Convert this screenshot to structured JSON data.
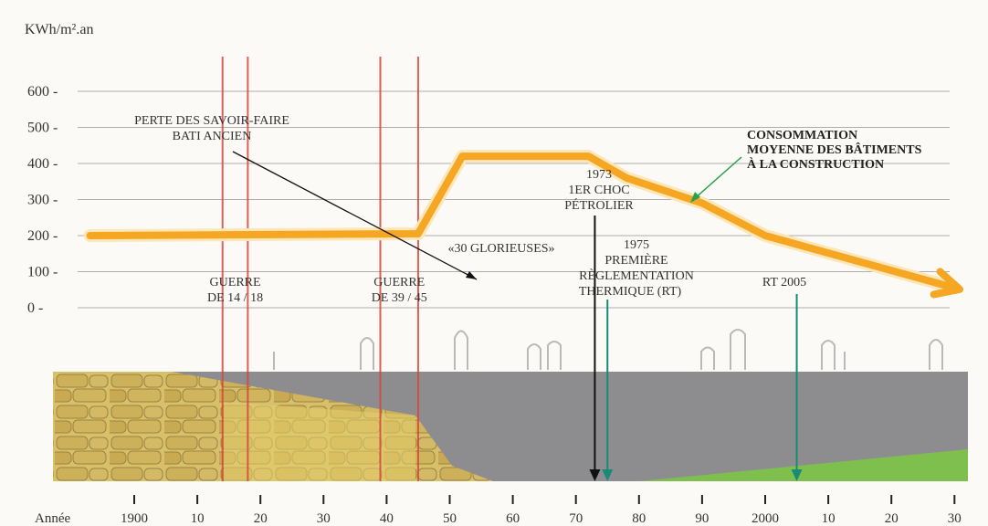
{
  "chart_data": {
    "type": "line",
    "ylabel": "KWh/m².an",
    "xlabel": "Année",
    "yticks": [
      "600",
      "500",
      "400",
      "300",
      "200",
      "100",
      "0"
    ],
    "ytick_values": [
      600,
      500,
      400,
      300,
      200,
      100,
      0
    ],
    "xticks": [
      "1900",
      "10",
      "20",
      "30",
      "40",
      "50",
      "60",
      "70",
      "80",
      "90",
      "2000",
      "10",
      "20",
      "30"
    ],
    "xtick_years": [
      1900,
      1910,
      1920,
      1930,
      1940,
      1950,
      1960,
      1970,
      1980,
      1990,
      2000,
      2010,
      2020,
      2030
    ],
    "xlim": [
      1900,
      2030
    ],
    "ylim": [
      0,
      600
    ],
    "series": [
      {
        "name": "CONSOMMATION MOYENNE DES BÂTIMENTS À LA CONSTRUCTION",
        "x": [
          1893,
          1945,
          1952,
          1972,
          1978,
          1990,
          2000,
          2030
        ],
        "y": [
          200,
          205,
          420,
          420,
          360,
          290,
          200,
          55
        ]
      }
    ],
    "war_periods": [
      {
        "label": "GUERRE DE 14 / 18",
        "start": 1914,
        "end": 1918
      },
      {
        "label": "GUERRE DE 39 / 45",
        "start": 1939,
        "end": 1945
      }
    ],
    "annotations": [
      {
        "text": "PERTE DES SAVOIR-FAIRE"
      },
      {
        "text": "BATI ANCIEN"
      },
      {
        "text": "«30 GLORIEUSES»"
      },
      {
        "text": "1973"
      },
      {
        "text": "1ER CHOC"
      },
      {
        "text": "PÉTROLIER"
      },
      {
        "text": "1975"
      },
      {
        "text": "PREMIÈRE"
      },
      {
        "text": "RÈGLEMENTATION"
      },
      {
        "text": "THERMIQUE (RT)"
      },
      {
        "text": "RT 2005"
      },
      {
        "text": "CONSOMMATION"
      },
      {
        "text": "MOYENNE DES BÂTIMENTS"
      },
      {
        "text": "À LA CONSTRUCTION"
      }
    ],
    "markers": [
      {
        "year": 1973,
        "color": "#111111"
      },
      {
        "year": 1975,
        "color": "#1a8a78"
      },
      {
        "year": 2005,
        "color": "#1a8a78"
      }
    ],
    "grid": true,
    "colors": {
      "series": "#f5a623",
      "war": "#d9453a",
      "grey_band": "#8d8d90",
      "stone": "#c9a94a",
      "green": "#7fbf4d",
      "arrow": "#111111",
      "green_arrow": "#2aa04a"
    }
  }
}
